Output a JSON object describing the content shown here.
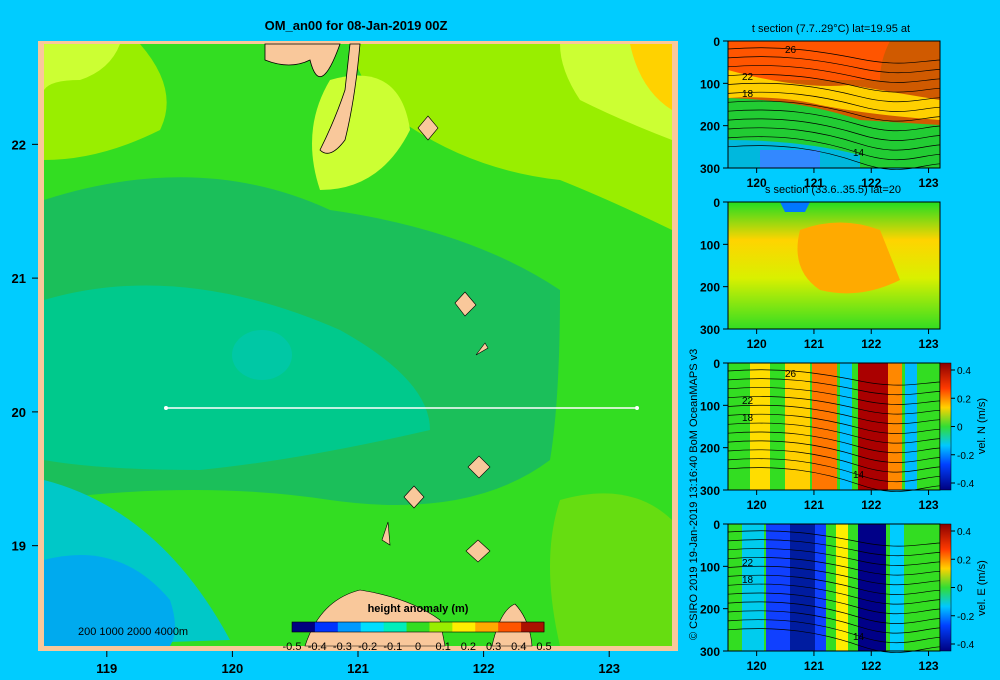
{
  "colors": {
    "background": "#00ccff",
    "land": "#f9c89b",
    "track": "#ffffff"
  },
  "chart_data": [
    {
      "type": "heatmap",
      "title": "OM_an00 for 08-Jan-2019 00Z",
      "x_ticks": [
        "119",
        "120",
        "121",
        "122",
        "123"
      ],
      "y_ticks": [
        "19",
        "20",
        "21",
        "22"
      ],
      "xlim": [
        118.5,
        123.5
      ],
      "ylim": [
        18.25,
        22.75
      ],
      "depth_key": "200  1000  2000  4000m",
      "colorbar": {
        "label": "height anomaly (m)",
        "ticks": [
          "-0.5",
          "-0.4",
          "-0.3",
          "-0.2",
          "-0.1",
          "0",
          "0.1",
          "0.2",
          "0.3",
          "0.4",
          "0.5"
        ],
        "range": [
          -0.5,
          0.5
        ]
      },
      "section_line": {
        "lat": 20,
        "lon": [
          119.5,
          123.2
        ]
      }
    },
    {
      "type": "heatmap",
      "title": "t section (7.7..29°C) lat=19.95 at",
      "x_ticks": [
        "120",
        "121",
        "122",
        "123"
      ],
      "y_ticks": [
        "0",
        "100",
        "200",
        "300"
      ],
      "xlim": [
        119.5,
        123.2
      ],
      "ylim": [
        300,
        0
      ],
      "contour_labels": [
        "26",
        "22",
        "18",
        "14"
      ]
    },
    {
      "type": "heatmap",
      "title": "s section (33.6..35.5) lat=20",
      "x_ticks": [
        "120",
        "121",
        "122",
        "123"
      ],
      "y_ticks": [
        "0",
        "100",
        "200",
        "300"
      ],
      "xlim": [
        119.5,
        123.2
      ],
      "ylim": [
        300,
        0
      ]
    },
    {
      "type": "heatmap",
      "title": "",
      "x_ticks": [
        "120",
        "121",
        "122",
        "123"
      ],
      "y_ticks": [
        "0",
        "100",
        "200",
        "300"
      ],
      "xlim": [
        119.5,
        123.2
      ],
      "ylim": [
        300,
        0
      ],
      "contour_labels": [
        "26",
        "22",
        "18",
        "14"
      ],
      "colorbar": {
        "label": "vel. N (m/s)",
        "ticks": [
          "0.4",
          "0.2",
          "0",
          "-0.2",
          "-0.4"
        ],
        "range": [
          -0.4,
          0.4
        ]
      }
    },
    {
      "type": "heatmap",
      "title": "",
      "x_ticks": [
        "120",
        "121",
        "122",
        "123"
      ],
      "y_ticks": [
        "0",
        "100",
        "200",
        "300"
      ],
      "xlim": [
        119.5,
        123.2
      ],
      "ylim": [
        300,
        0
      ],
      "contour_labels": [
        "22",
        "18",
        "14"
      ],
      "colorbar": {
        "label": "vel. E (m/s)",
        "ticks": [
          "0.4",
          "0.2",
          "0",
          "-0.2",
          "-0.4"
        ],
        "range": [
          -0.4,
          0.4
        ]
      }
    }
  ],
  "credit": "© CSIRO 2019   19-Jan-2019 13:16:40 BoM OceanMAPS v3"
}
